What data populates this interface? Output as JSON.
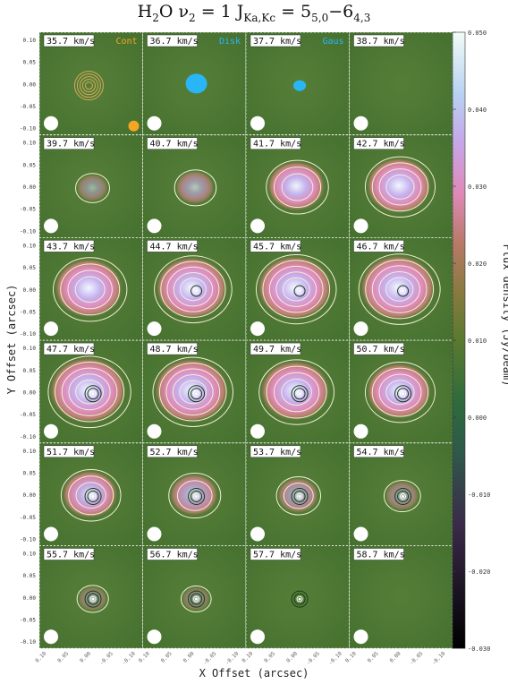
{
  "title": {
    "prefix": "H",
    "sub1": "2",
    "mid": "O  ν",
    "sub2": "2",
    "eq": " = 1  J",
    "sub3": "Ka,Kc",
    "rest": " = 5",
    "sub4": "5,0",
    "dash": "−6",
    "sub5": "4,3"
  },
  "xlabel": "X Offset (arcsec)",
  "ylabel": "Y Offset (arcsec)",
  "cblabel": "Flux density (Jy/beam)",
  "legend": {
    "cont": "Cont",
    "disk": "Disk",
    "gaus": "Gaus"
  },
  "colors": {
    "cont": "#f5a623",
    "disk": "#29b6f6",
    "gaus": "#29b6f6",
    "background": "#4f7a34"
  },
  "chart_data": {
    "type": "heatmap",
    "layout": "channel map grid, 6 rows x 4 columns",
    "ytick_labels": [
      "0.10",
      "0.05",
      "0.00",
      "-0.05",
      "-0.10"
    ],
    "xtick_labels": [
      "0.10",
      "0.05",
      "0.00",
      "-0.05",
      "-0.10"
    ],
    "xlim": [
      0.1,
      -0.1
    ],
    "ylim": [
      -0.1,
      0.1
    ],
    "colorbar": {
      "ticks": [
        "0.050",
        "0.040",
        "0.030",
        "0.020",
        "0.010",
        "0.000",
        "-0.010",
        "-0.020",
        "-0.030"
      ],
      "range": [
        -0.03,
        0.05
      ]
    },
    "channels": [
      {
        "label": "35.7 km/s",
        "peak": 0.0,
        "cont": true
      },
      {
        "label": "36.7 km/s",
        "peak": 0.0,
        "disk": true
      },
      {
        "label": "37.7 km/s",
        "peak": 0.0,
        "gaus": true
      },
      {
        "label": "38.7 km/s",
        "peak": 0.0
      },
      {
        "label": "39.7 km/s",
        "peak": 0.006
      },
      {
        "label": "40.7 km/s",
        "peak": 0.012
      },
      {
        "label": "41.7 km/s",
        "peak": 0.028
      },
      {
        "label": "42.7 km/s",
        "peak": 0.034
      },
      {
        "label": "43.7 km/s",
        "peak": 0.037
      },
      {
        "label": "44.7 km/s",
        "peak": 0.04
      },
      {
        "label": "45.7 km/s",
        "peak": 0.042
      },
      {
        "label": "46.7 km/s",
        "peak": 0.043
      },
      {
        "label": "47.7 km/s",
        "peak": 0.044
      },
      {
        "label": "48.7 km/s",
        "peak": 0.042
      },
      {
        "label": "49.7 km/s",
        "peak": 0.038
      },
      {
        "label": "50.7 km/s",
        "peak": 0.034
      },
      {
        "label": "51.7 km/s",
        "peak": 0.026
      },
      {
        "label": "52.7 km/s",
        "peak": 0.02
      },
      {
        "label": "53.7 km/s",
        "peak": 0.014
      },
      {
        "label": "54.7 km/s",
        "peak": 0.008
      },
      {
        "label": "55.7 km/s",
        "peak": 0.004
      },
      {
        "label": "56.7 km/s",
        "peak": 0.003
      },
      {
        "label": "57.7 km/s",
        "peak": 0.002
      },
      {
        "label": "58.7 km/s",
        "peak": 0.0
      }
    ]
  }
}
